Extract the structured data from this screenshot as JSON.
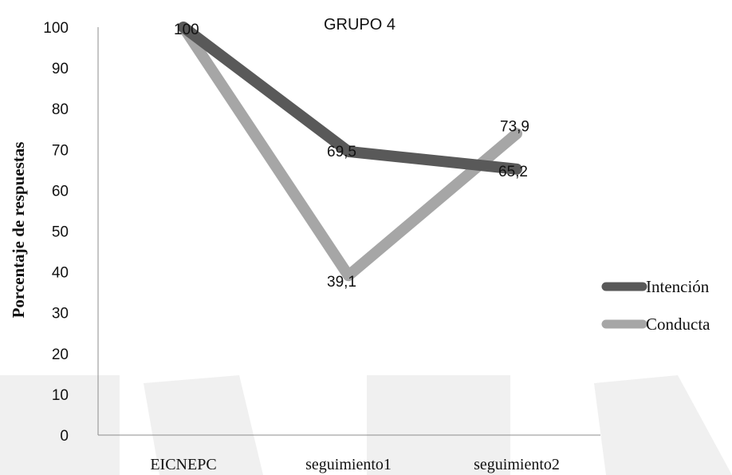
{
  "chart_data": {
    "type": "line",
    "title": "GRUPO 4",
    "ylabel": "Porcentaje de respuestas",
    "xlabel": "",
    "categories": [
      "EICNEPC",
      "seguimiento1",
      "seguimiento2"
    ],
    "ylim": [
      0,
      100
    ],
    "yticks": [
      0,
      10,
      20,
      30,
      40,
      50,
      60,
      70,
      80,
      90,
      100
    ],
    "grid": false,
    "legend_position": "right",
    "series": [
      {
        "name": "Intención",
        "values": [
          100,
          69.5,
          65.2
        ],
        "labels": [
          "100",
          "69,5",
          "65,2"
        ],
        "color": "#595959"
      },
      {
        "name": "Conducta",
        "values": [
          100,
          39.1,
          73.9
        ],
        "labels": [
          "",
          "39,1",
          "73,9"
        ],
        "color": "#a6a6a6"
      }
    ]
  }
}
